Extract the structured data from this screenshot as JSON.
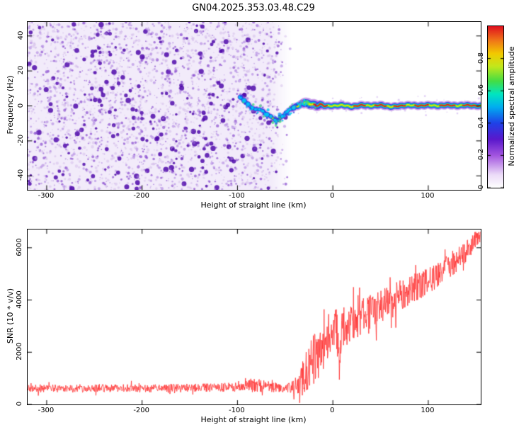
{
  "title": "GN04.2025.353.03.48.C29",
  "chart_data": [
    {
      "type": "heatmap",
      "name": "spectrogram",
      "title": "GN04.2025.353.03.48.C29",
      "xlabel": "Height of straight line (km)",
      "ylabel": "Frequency (Hz)",
      "xlim": [
        -320,
        155
      ],
      "ylim": [
        -48,
        48
      ],
      "xticks": [
        -300,
        -200,
        -100,
        0,
        100
      ],
      "xtick_labels": [
        "-300",
        "-200",
        "-100",
        "0",
        "100"
      ],
      "yticks": [
        -40,
        -20,
        0,
        20,
        40
      ],
      "ytick_labels": [
        "-40",
        "-20",
        "0",
        "20",
        "40"
      ],
      "grid": false,
      "colorbar": {
        "label": "Normalized spectral amplitude",
        "range": [
          0,
          1
        ],
        "ticks": [
          0,
          0.2,
          0.4,
          0.6,
          0.8
        ],
        "tick_labels": [
          "0",
          "0.2",
          "0.4",
          "0.6",
          "0.8"
        ],
        "colormap_stops": [
          {
            "t": 0.0,
            "c": "#ffffff"
          },
          {
            "t": 0.08,
            "c": "#ecdcf8"
          },
          {
            "t": 0.2,
            "c": "#a355e0"
          },
          {
            "t": 0.3,
            "c": "#5a18cc"
          },
          {
            "t": 0.4,
            "c": "#1f42e8"
          },
          {
            "t": 0.5,
            "c": "#00aef0"
          },
          {
            "t": 0.58,
            "c": "#00e6c0"
          },
          {
            "t": 0.66,
            "c": "#44dd44"
          },
          {
            "t": 0.75,
            "c": "#c2e81c"
          },
          {
            "t": 0.83,
            "c": "#f2ca00"
          },
          {
            "t": 0.91,
            "c": "#f07818"
          },
          {
            "t": 1.0,
            "c": "#e0101f"
          }
        ]
      },
      "noise_region": {
        "x_range": [
          -320,
          -44
        ],
        "amplitude_range": [
          0,
          0.3
        ],
        "description": "dense low-amplitude purple speckle noise filling all frequencies, fading out near -50 km"
      },
      "signal_trace": {
        "description": "narrow high-amplitude carrier near 0 Hz; wiggles down to -8 Hz between -70 and -55 km then flattens at ~0 Hz to the right edge",
        "x": [
          -97,
          -93,
          -89,
          -85,
          -81,
          -77,
          -73,
          -69,
          -65,
          -61,
          -57,
          -53,
          -49,
          -45,
          -41,
          -37,
          -33,
          -29,
          -25,
          -21,
          -17,
          -13,
          -9,
          -5,
          0,
          10,
          20,
          30,
          40,
          50,
          60,
          70,
          80,
          90,
          100,
          110,
          120,
          130,
          140,
          150,
          155
        ],
        "freq_hz": [
          5,
          3,
          1,
          -1,
          -2,
          -2,
          -3,
          -5,
          -6,
          -8,
          -8,
          -6,
          -4,
          -2,
          -1,
          0,
          1,
          2,
          1,
          1,
          0,
          1,
          0,
          0,
          0,
          0.5,
          -0.5,
          0.5,
          0,
          0.5,
          -0.5,
          0,
          0.5,
          0,
          0.5,
          0,
          0.5,
          0,
          0.5,
          0,
          0
        ],
        "amplitude": [
          0.55,
          0.6,
          0.55,
          0.5,
          0.5,
          0.55,
          0.5,
          0.6,
          0.65,
          0.75,
          0.8,
          0.65,
          0.6,
          0.65,
          0.7,
          0.8,
          0.85,
          0.9,
          0.9,
          0.95,
          0.9,
          0.9,
          0.95,
          1.0,
          0.95,
          0.9,
          0.95,
          1.0,
          0.9,
          0.95,
          1.0,
          0.95,
          0.9,
          0.95,
          1.0,
          0.9,
          0.95,
          1.0,
          0.95,
          1.0,
          0.95
        ],
        "red_core_segments": [
          [
            -20,
            -6
          ],
          [
            22,
            34
          ],
          [
            44,
            56
          ],
          [
            64,
            76
          ],
          [
            86,
            100
          ],
          [
            112,
            128
          ],
          [
            136,
            154
          ]
        ]
      }
    },
    {
      "type": "line",
      "name": "snr",
      "xlabel": "Height of straight line (km)",
      "ylabel": "SNR (10 * v/v)",
      "xlim": [
        -320,
        155
      ],
      "ylim": [
        0,
        6700
      ],
      "xticks": [
        -300,
        -200,
        -100,
        0,
        100
      ],
      "xtick_labels": [
        "-300",
        "-200",
        "-100",
        "0",
        "100"
      ],
      "yticks": [
        0,
        2000,
        4000,
        6000
      ],
      "ytick_labels": [
        "0",
        "2000",
        "4000",
        "6000"
      ],
      "color": "#ff3030",
      "series_description": "noisy SNR trace: flat ~600 baseline left of -40 km, sharp noisy rise after -30 km climbing to ~6500 at 155 km, narrow dropout near +7 km",
      "x": [
        -320,
        -280,
        -240,
        -200,
        -160,
        -130,
        -110,
        -95,
        -85,
        -78,
        -70,
        -62,
        -55,
        -48,
        -42,
        -37,
        -32,
        -28,
        -24,
        -20,
        -16,
        -12,
        -8,
        -4,
        0,
        4,
        7,
        10,
        15,
        20,
        30,
        40,
        50,
        60,
        70,
        80,
        90,
        100,
        110,
        120,
        130,
        140,
        148,
        155
      ],
      "mean": [
        620,
        610,
        630,
        615,
        625,
        640,
        660,
        680,
        720,
        760,
        690,
        660,
        640,
        630,
        660,
        750,
        950,
        1250,
        1500,
        1750,
        1950,
        2150,
        2400,
        2650,
        2800,
        2900,
        1400,
        2950,
        3050,
        3150,
        3350,
        3550,
        3750,
        3950,
        4150,
        4350,
        4550,
        4750,
        4950,
        5250,
        5550,
        5900,
        6250,
        6500
      ],
      "noise_amplitude": [
        160,
        150,
        160,
        150,
        160,
        160,
        170,
        180,
        260,
        330,
        230,
        190,
        180,
        180,
        260,
        420,
        650,
        850,
        950,
        1000,
        980,
        950,
        930,
        880,
        850,
        800,
        600,
        780,
        760,
        720,
        680,
        650,
        640,
        620,
        600,
        580,
        560,
        540,
        520,
        500,
        470,
        430,
        380,
        320
      ]
    }
  ]
}
